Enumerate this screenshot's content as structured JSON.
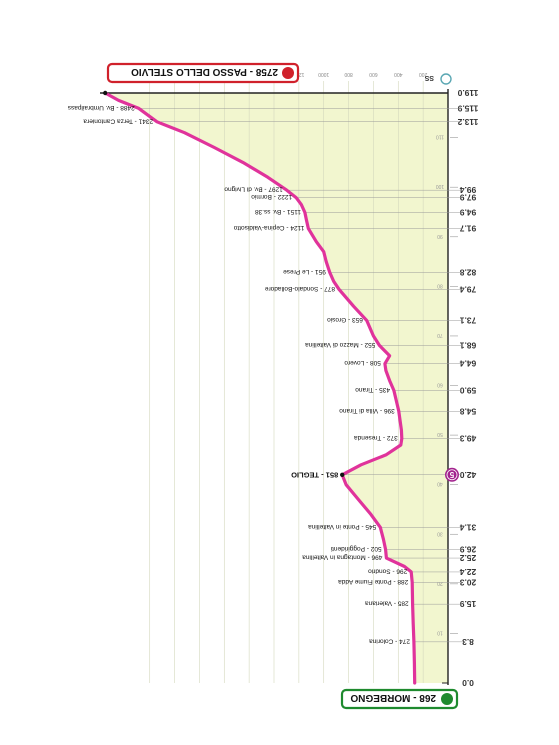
{
  "chart_data": {
    "type": "area",
    "orientation": "rotated-180",
    "title": "",
    "xlabel": "",
    "ylabel": "",
    "xlim": [
      0,
      119
    ],
    "ylim": [
      0,
      2800
    ],
    "y_ticks": [
      200,
      400,
      600,
      800,
      1000,
      1200,
      1400,
      1600,
      1800,
      2000,
      2200,
      2400
    ],
    "km_markers": [
      10,
      20,
      30,
      40,
      50,
      60,
      70,
      80,
      90,
      100,
      110
    ],
    "profile": [
      {
        "km": 0,
        "elev": 268
      },
      {
        "km": 4,
        "elev": 270
      },
      {
        "km": 8.3,
        "elev": 274
      },
      {
        "km": 12,
        "elev": 280
      },
      {
        "km": 15.9,
        "elev": 285
      },
      {
        "km": 20.3,
        "elev": 288
      },
      {
        "km": 22.4,
        "elev": 296
      },
      {
        "km": 23.5,
        "elev": 350
      },
      {
        "km": 25.2,
        "elev": 496
      },
      {
        "km": 26.9,
        "elev": 502
      },
      {
        "km": 29,
        "elev": 520
      },
      {
        "km": 31.4,
        "elev": 545
      },
      {
        "km": 34,
        "elev": 620
      },
      {
        "km": 37,
        "elev": 720
      },
      {
        "km": 40,
        "elev": 820
      },
      {
        "km": 42.0,
        "elev": 851
      },
      {
        "km": 44,
        "elev": 700
      },
      {
        "km": 46,
        "elev": 500
      },
      {
        "km": 48,
        "elev": 380
      },
      {
        "km": 49.3,
        "elev": 372
      },
      {
        "km": 51,
        "elev": 375
      },
      {
        "km": 54.8,
        "elev": 396
      },
      {
        "km": 59.0,
        "elev": 435
      },
      {
        "km": 61,
        "elev": 470
      },
      {
        "km": 63,
        "elev": 500
      },
      {
        "km": 64.4,
        "elev": 508
      },
      {
        "km": 66,
        "elev": 470
      },
      {
        "km": 68.1,
        "elev": 552
      },
      {
        "km": 70,
        "elev": 600
      },
      {
        "km": 73.1,
        "elev": 653
      },
      {
        "km": 76,
        "elev": 760
      },
      {
        "km": 79.4,
        "elev": 877
      },
      {
        "km": 81,
        "elev": 920
      },
      {
        "km": 82.8,
        "elev": 951
      },
      {
        "km": 85,
        "elev": 980
      },
      {
        "km": 87,
        "elev": 1000
      },
      {
        "km": 89,
        "elev": 1060
      },
      {
        "km": 91.7,
        "elev": 1124
      },
      {
        "km": 93.5,
        "elev": 1140
      },
      {
        "km": 94.9,
        "elev": 1151
      },
      {
        "km": 96.5,
        "elev": 1180
      },
      {
        "km": 97.9,
        "elev": 1222
      },
      {
        "km": 99.4,
        "elev": 1297
      },
      {
        "km": 102,
        "elev": 1450
      },
      {
        "km": 105,
        "elev": 1650
      },
      {
        "km": 108,
        "elev": 1880
      },
      {
        "km": 111,
        "elev": 2120
      },
      {
        "km": 113.2,
        "elev": 2341
      },
      {
        "km": 115.9,
        "elev": 2488
      },
      {
        "km": 117.5,
        "elev": 2650
      },
      {
        "km": 119.0,
        "elev": 2758
      }
    ],
    "km_labels": [
      "0.0",
      "8.3",
      "15.9",
      "20.3",
      "22.4",
      "25.2",
      "26.9",
      "31.4",
      "42.0",
      "49.3",
      "54.8",
      "59.0",
      "64.4",
      "68.1",
      "73.1",
      "79.4",
      "82.8",
      "91.7",
      "94.9",
      "97.9",
      "99.4",
      "113.2",
      "115.9",
      "119.0"
    ],
    "waypoints": [
      {
        "km": 8.3,
        "elev": 274,
        "label": "274 - Colorina",
        "bold": false
      },
      {
        "km": 15.9,
        "elev": 285,
        "label": "285 - Valeriana",
        "bold": false
      },
      {
        "km": 20.3,
        "elev": 288,
        "label": "288 - Ponte Fiume Adda",
        "bold": false
      },
      {
        "km": 22.4,
        "elev": 296,
        "label": "296 - Sondrio",
        "bold": false
      },
      {
        "km": 25.2,
        "elev": 496,
        "label": "496 - Montagna in Valtellina",
        "bold": false
      },
      {
        "km": 26.9,
        "elev": 502,
        "label": "502 - Poggiridenti",
        "bold": false
      },
      {
        "km": 31.4,
        "elev": 545,
        "label": "545 - Ponte in Valtellina",
        "bold": false
      },
      {
        "km": 42.0,
        "elev": 851,
        "label": "851 - TEGLIO",
        "bold": true
      },
      {
        "km": 49.3,
        "elev": 372,
        "label": "372 - Tresenda",
        "bold": false
      },
      {
        "km": 54.8,
        "elev": 396,
        "label": "396 - Villa di Tirano",
        "bold": false
      },
      {
        "km": 59.0,
        "elev": 435,
        "label": "435 - Tirano",
        "bold": false
      },
      {
        "km": 64.4,
        "elev": 508,
        "label": "508 - Lovero",
        "bold": false
      },
      {
        "km": 68.1,
        "elev": 552,
        "label": "552 - Mazzo di Valtellina",
        "bold": false
      },
      {
        "km": 73.1,
        "elev": 653,
        "label": "653 - Grosio",
        "bold": false
      },
      {
        "km": 79.4,
        "elev": 877,
        "label": "877 - Sondalo-Bolladore",
        "bold": false
      },
      {
        "km": 82.8,
        "elev": 951,
        "label": "951 - Le Prese",
        "bold": false
      },
      {
        "km": 91.7,
        "elev": 1124,
        "label": "1124 - Cepina-Valdisotto",
        "bold": false
      },
      {
        "km": 94.9,
        "elev": 1151,
        "label": "1151 - Bv. ss.38",
        "bold": false
      },
      {
        "km": 97.9,
        "elev": 1222,
        "label": "1222 - Bormio",
        "bold": false
      },
      {
        "km": 99.4,
        "elev": 1297,
        "label": "1297 - Bv. di Livigno",
        "bold": false
      },
      {
        "km": 113.2,
        "elev": 2341,
        "label": "2341 - Terza Cantoniera",
        "bold": false
      },
      {
        "km": 115.9,
        "elev": 2488,
        "label": "2488 - Bv. Umbrailpass",
        "bold": false
      }
    ],
    "start": {
      "label": "268 - MORBEGNO",
      "color": "#1e8a2e"
    },
    "finish": {
      "label": "2758 - PASSO DELLO STELVIO",
      "color": "#d0212b"
    },
    "gpm_marker": {
      "text": "5",
      "color": "#a3238e"
    },
    "top_label": "SS",
    "series_color": "#e0339b",
    "fill_color": "#f2f6cf"
  }
}
